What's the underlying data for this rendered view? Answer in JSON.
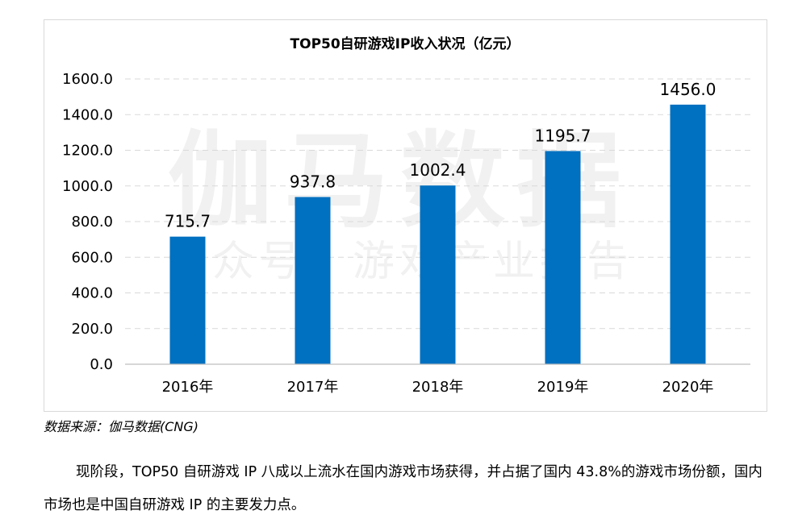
{
  "chart_data": {
    "type": "bar",
    "title": "TOP50自研游戏IP收入状况（亿元）",
    "categories": [
      "2016年",
      "2017年",
      "2018年",
      "2019年",
      "2020年"
    ],
    "values": [
      715.7,
      937.8,
      1002.4,
      1195.7,
      1456.0
    ],
    "value_labels": [
      "715.7",
      "937.8",
      "1002.4",
      "1195.7",
      "1456.0"
    ],
    "yticks": [
      "0.0",
      "200.0",
      "400.0",
      "600.0",
      "800.0",
      "1000.0",
      "1200.0",
      "1400.0",
      "1600.0"
    ],
    "ylim": [
      0,
      1600
    ],
    "grid": true,
    "bar_color": "#0070C0"
  },
  "watermark": {
    "main": "伽马数据",
    "sub": "公众号：游戏产业报告"
  },
  "source_note": "数据来源：伽马数据(CNG)",
  "paragraph": "现阶段，TOP50 自研游戏 IP 八成以上流水在国内游戏市场获得，并占据了国内 43.8%的游戏市场份额，国内市场也是中国自研游戏 IP 的主要发力点。"
}
